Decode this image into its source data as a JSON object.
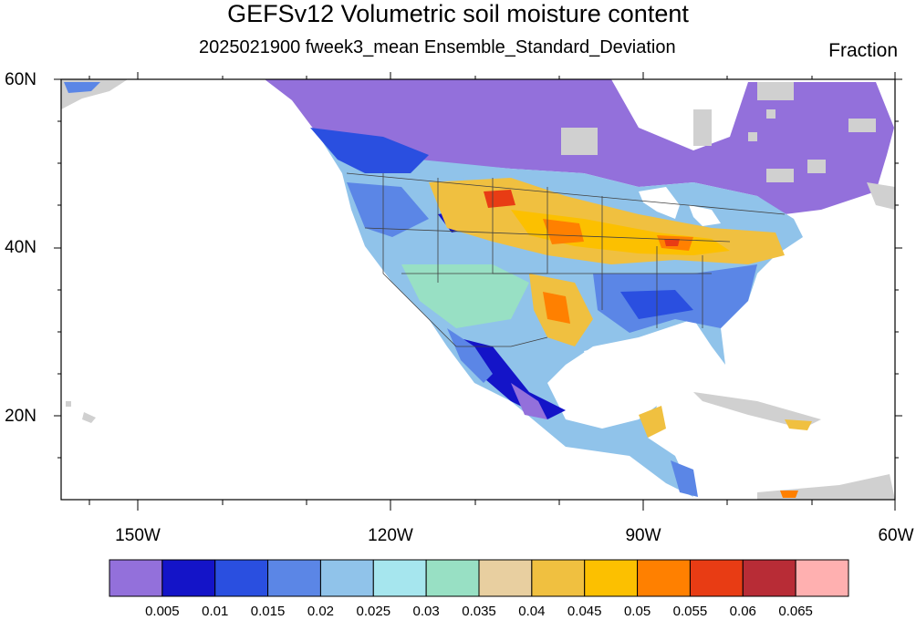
{
  "map": {
    "title": "GEFSv12 Volumetric soil moisture content",
    "subtitle": "2025021900 fweek3_mean Ensemble_Standard_Deviation",
    "units": "Fraction",
    "lat_labels": [
      "60N",
      "40N",
      "20N"
    ],
    "lon_labels": [
      "150W",
      "120W",
      "90W",
      "60W"
    ],
    "extent": {
      "lon_min": -158,
      "lon_max": -60,
      "lat_min": 10,
      "lat_max": 60
    }
  },
  "colorbar": {
    "labels": [
      "0.005",
      "0.01",
      "0.015",
      "0.02",
      "0.025",
      "0.03",
      "0.035",
      "0.04",
      "0.045",
      "0.05",
      "0.055",
      "0.06",
      "0.065"
    ],
    "colors": [
      "#9370db",
      "#1414c8",
      "#2a4fe0",
      "#5b86e6",
      "#90c3ea",
      "#a6e6ee",
      "#98e0c4",
      "#e8cfa0",
      "#f0c040",
      "#fcc000",
      "#ff8000",
      "#e83c14",
      "#b82c36",
      "#ffb0b0"
    ]
  },
  "colors": {
    "land_missing": "#d0d0d0",
    "canada_low": "#9370db",
    "frame": "#000000"
  }
}
